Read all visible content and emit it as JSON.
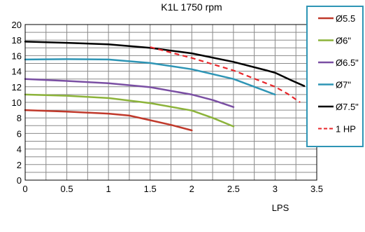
{
  "chart_data": {
    "type": "line",
    "title": "K1L 1750 rpm",
    "xlabel": "LPS",
    "ylabel": "",
    "xlim": [
      0,
      3.5
    ],
    "ylim": [
      0,
      20
    ],
    "x_ticks": [
      "0",
      "0.5",
      "1",
      "1.5",
      "2",
      "2.5",
      "3",
      "3.5"
    ],
    "y_ticks": [
      "0",
      "2",
      "4",
      "6",
      "8",
      "10",
      "12",
      "14",
      "16",
      "18",
      "20"
    ],
    "grid": true,
    "legend_position": "right",
    "series": [
      {
        "name": "Ø5.5",
        "color": "#c0392b",
        "dash": "solid",
        "points": [
          [
            0,
            9.0
          ],
          [
            0.5,
            8.8
          ],
          [
            1.0,
            8.55
          ],
          [
            1.25,
            8.3
          ],
          [
            1.5,
            7.7
          ],
          [
            1.75,
            7.1
          ],
          [
            2.0,
            6.4
          ]
        ]
      },
      {
        "name": "Ø6\"",
        "color": "#8cb33a",
        "dash": "solid",
        "points": [
          [
            0,
            11.0
          ],
          [
            0.5,
            10.85
          ],
          [
            1.0,
            10.55
          ],
          [
            1.5,
            9.9
          ],
          [
            2.0,
            8.95
          ],
          [
            2.25,
            8.0
          ],
          [
            2.5,
            6.9
          ]
        ]
      },
      {
        "name": "Ø6.5\"",
        "color": "#7a4fa3",
        "dash": "solid",
        "points": [
          [
            0,
            13.0
          ],
          [
            0.5,
            12.75
          ],
          [
            1.0,
            12.45
          ],
          [
            1.5,
            11.95
          ],
          [
            2.0,
            11.0
          ],
          [
            2.25,
            10.3
          ],
          [
            2.5,
            9.4
          ]
        ]
      },
      {
        "name": "Ø7\"",
        "color": "#2e95b5",
        "dash": "solid",
        "points": [
          [
            0,
            15.5
          ],
          [
            0.5,
            15.55
          ],
          [
            1.0,
            15.5
          ],
          [
            1.5,
            15.05
          ],
          [
            2.0,
            14.25
          ],
          [
            2.5,
            13.0
          ],
          [
            3.0,
            11.0
          ]
        ]
      },
      {
        "name": "Ø7.5\"",
        "color": "#000000",
        "dash": "solid",
        "points": [
          [
            0,
            17.8
          ],
          [
            0.5,
            17.65
          ],
          [
            1.0,
            17.45
          ],
          [
            1.5,
            17.0
          ],
          [
            2.0,
            16.3
          ],
          [
            2.5,
            15.2
          ],
          [
            2.9,
            14.1
          ],
          [
            3.0,
            13.8
          ],
          [
            3.2,
            12.8
          ],
          [
            3.35,
            12.1
          ]
        ]
      },
      {
        "name": "1 HP",
        "color": "#e8262a",
        "dash": "dashed",
        "points": [
          [
            1.5,
            17.1
          ],
          [
            2.0,
            15.7
          ],
          [
            2.5,
            14.1
          ],
          [
            3.0,
            12.0
          ],
          [
            3.15,
            11.1
          ],
          [
            3.3,
            10.0
          ]
        ]
      }
    ]
  }
}
